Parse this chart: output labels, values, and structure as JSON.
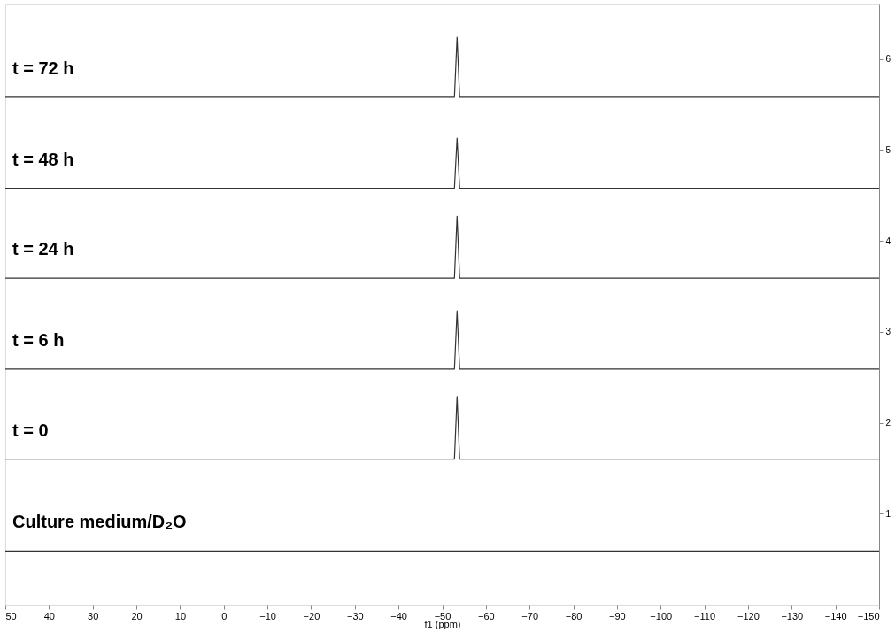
{
  "chart_data": {
    "type": "line",
    "xlabel": "f1 (ppm)",
    "xlim": [
      50,
      -150
    ],
    "xticks": [
      50,
      40,
      30,
      20,
      10,
      0,
      -10,
      -20,
      -30,
      -40,
      -50,
      -60,
      -70,
      -80,
      -90,
      -100,
      -110,
      -120,
      -130,
      -140,
      -150
    ],
    "ylim": [
      0,
      6.6
    ],
    "yticks": [
      1,
      2,
      3,
      4,
      5,
      6
    ],
    "grid": false,
    "legend": false,
    "marker": "none",
    "line_style": "solid",
    "series": [
      {
        "name": "t = 72 h",
        "color": "#333333",
        "x": [
          50,
          -52.8,
          -53.4,
          -54,
          -150
        ],
        "values": [
          5.58,
          5.58,
          6.24,
          5.58,
          5.58
        ]
      },
      {
        "name": "t = 48 h",
        "color": "#333333",
        "x": [
          50,
          -52.8,
          -53.4,
          -54,
          -150
        ],
        "values": [
          4.58,
          4.58,
          5.13,
          4.58,
          4.58
        ]
      },
      {
        "name": "t = 24 h",
        "color": "#333333",
        "x": [
          50,
          -52.8,
          -53.4,
          -54,
          -150
        ],
        "values": [
          3.59,
          3.59,
          4.27,
          3.59,
          3.59
        ]
      },
      {
        "name": "t = 6 h",
        "color": "#333333",
        "x": [
          50,
          -52.8,
          -53.4,
          -54,
          -150
        ],
        "values": [
          2.59,
          2.59,
          3.23,
          2.59,
          2.59
        ]
      },
      {
        "name": "t = 0",
        "color": "#333333",
        "x": [
          50,
          -52.8,
          -53.4,
          -54,
          -150
        ],
        "values": [
          1.6,
          1.6,
          2.29,
          1.6,
          1.6
        ]
      },
      {
        "name": "Culture medium/D₂O",
        "color": "#333333",
        "x": [
          50,
          -150
        ],
        "values": [
          0.59,
          0.59
        ]
      }
    ]
  }
}
